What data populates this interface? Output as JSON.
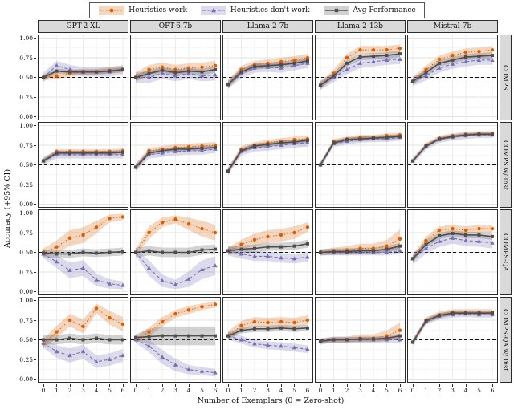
{
  "legend": {
    "items": [
      {
        "label": "Heuristics work"
      },
      {
        "label": "Heuristics don't work"
      },
      {
        "label": "Avg Performance"
      }
    ]
  },
  "axes": {
    "x_label": "Number of Exemplars (0 = Zero-shot)",
    "y_label": "Accuracy (+95% CI)",
    "y_ticks": [
      "0.00",
      "0.25",
      "0.50",
      "0.75",
      "1.00"
    ],
    "x_ticks": [
      "0",
      "1",
      "2",
      "3",
      "4",
      "5",
      "6"
    ]
  },
  "chart_data": {
    "type": "line",
    "x": [
      0,
      1,
      2,
      3,
      4,
      5,
      6
    ],
    "xlabel": "Number of Exemplars (0 = Zero-shot)",
    "ylabel": "Accuracy (+95% CI)",
    "ylim": [
      0,
      1
    ],
    "yticks": [
      0,
      0.25,
      0.5,
      0.75,
      1
    ],
    "reference_line": 0.5,
    "grid": true,
    "legend_position": "top",
    "columns": [
      "GPT-2 XL",
      "OPT-6.7b",
      "Llama-2-7b",
      "Llama-2-13b",
      "Mistral-7b"
    ],
    "rows": [
      "COMPS",
      "COMPS w/ Inst",
      "COMPS-QA",
      "COMPS-QA w/ Inst"
    ],
    "series_meta": [
      {
        "id": "work",
        "name": "Heuristics work",
        "color": "#D95F02",
        "dash": "dotted",
        "marker": "circle"
      },
      {
        "id": "dont",
        "name": "Heuristics don't work",
        "color": "#7570B3",
        "dash": "dashed",
        "marker": "triangle"
      },
      {
        "id": "avg",
        "name": "Avg Performance",
        "color": "#4D4D4D",
        "dash": "solid",
        "marker": "square"
      }
    ],
    "panels": [
      [
        {
          "work": {
            "v": [
              0.5,
              0.52,
              0.55,
              0.57,
              0.57,
              0.59,
              0.6
            ],
            "ci": 0.04
          },
          "dont": {
            "v": [
              0.5,
              0.65,
              0.6,
              0.57,
              0.57,
              0.57,
              0.6
            ],
            "ci": 0.06
          },
          "avg": {
            "v": [
              0.5,
              0.58,
              0.57,
              0.57,
              0.57,
              0.58,
              0.6
            ],
            "ci": 0.03
          }
        },
        {
          "work": {
            "v": [
              0.5,
              0.6,
              0.63,
              0.6,
              0.62,
              0.63,
              0.65
            ],
            "ci": 0.06
          },
          "dont": {
            "v": [
              0.5,
              0.5,
              0.55,
              0.52,
              0.55,
              0.52,
              0.53
            ],
            "ci": 0.07
          },
          "avg": {
            "v": [
              0.5,
              0.55,
              0.59,
              0.56,
              0.58,
              0.57,
              0.6
            ],
            "ci": 0.04
          }
        },
        {
          "work": {
            "v": [
              0.41,
              0.6,
              0.66,
              0.68,
              0.7,
              0.72,
              0.75
            ],
            "ci": 0.05
          },
          "dont": {
            "v": [
              0.41,
              0.55,
              0.62,
              0.63,
              0.62,
              0.65,
              0.68
            ],
            "ci": 0.06
          },
          "avg": {
            "v": [
              0.41,
              0.57,
              0.64,
              0.65,
              0.66,
              0.68,
              0.71
            ],
            "ci": 0.04
          }
        },
        {
          "work": {
            "v": [
              0.4,
              0.55,
              0.75,
              0.85,
              0.85,
              0.85,
              0.87
            ],
            "ci": 0.05
          },
          "dont": {
            "v": [
              0.4,
              0.5,
              0.6,
              0.68,
              0.7,
              0.72,
              0.73
            ],
            "ci": 0.06
          },
          "avg": {
            "v": [
              0.4,
              0.52,
              0.68,
              0.76,
              0.77,
              0.78,
              0.8
            ],
            "ci": 0.04
          }
        },
        {
          "work": {
            "v": [
              0.45,
              0.6,
              0.73,
              0.78,
              0.82,
              0.83,
              0.85
            ],
            "ci": 0.05
          },
          "dont": {
            "v": [
              0.45,
              0.52,
              0.62,
              0.67,
              0.7,
              0.72,
              0.72
            ],
            "ci": 0.06
          },
          "avg": {
            "v": [
              0.45,
              0.56,
              0.68,
              0.72,
              0.76,
              0.77,
              0.78
            ],
            "ci": 0.04
          }
        }
      ],
      [
        {
          "work": {
            "v": [
              0.55,
              0.67,
              0.67,
              0.67,
              0.67,
              0.67,
              0.68
            ],
            "ci": 0.03
          },
          "dont": {
            "v": [
              0.55,
              0.63,
              0.63,
              0.63,
              0.63,
              0.63,
              0.63
            ],
            "ci": 0.05
          },
          "avg": {
            "v": [
              0.55,
              0.65,
              0.65,
              0.65,
              0.65,
              0.65,
              0.66
            ],
            "ci": 0.03
          }
        },
        {
          "work": {
            "v": [
              0.47,
              0.68,
              0.7,
              0.72,
              0.73,
              0.74,
              0.75
            ],
            "ci": 0.04
          },
          "dont": {
            "v": [
              0.47,
              0.63,
              0.65,
              0.67,
              0.68,
              0.68,
              0.7
            ],
            "ci": 0.05
          },
          "avg": {
            "v": [
              0.47,
              0.65,
              0.68,
              0.7,
              0.7,
              0.71,
              0.72
            ],
            "ci": 0.03
          }
        },
        {
          "work": {
            "v": [
              0.42,
              0.7,
              0.75,
              0.78,
              0.8,
              0.82,
              0.83
            ],
            "ci": 0.04
          },
          "dont": {
            "v": [
              0.42,
              0.67,
              0.72,
              0.73,
              0.75,
              0.77,
              0.78
            ],
            "ci": 0.05
          },
          "avg": {
            "v": [
              0.42,
              0.68,
              0.74,
              0.76,
              0.78,
              0.79,
              0.81
            ],
            "ci": 0.03
          }
        },
        {
          "work": {
            "v": [
              0.5,
              0.8,
              0.83,
              0.85,
              0.85,
              0.87,
              0.88
            ],
            "ci": 0.03
          },
          "dont": {
            "v": [
              0.5,
              0.77,
              0.8,
              0.82,
              0.83,
              0.83,
              0.85
            ],
            "ci": 0.04
          },
          "avg": {
            "v": [
              0.5,
              0.78,
              0.82,
              0.83,
              0.84,
              0.85,
              0.86
            ],
            "ci": 0.03
          }
        },
        {
          "work": {
            "v": [
              0.55,
              0.75,
              0.84,
              0.87,
              0.89,
              0.9,
              0.9
            ],
            "ci": 0.03
          },
          "dont": {
            "v": [
              0.55,
              0.73,
              0.82,
              0.85,
              0.87,
              0.88,
              0.88
            ],
            "ci": 0.04
          },
          "avg": {
            "v": [
              0.55,
              0.74,
              0.83,
              0.86,
              0.88,
              0.89,
              0.89
            ],
            "ci": 0.02
          }
        }
      ],
      [
        {
          "work": {
            "v": [
              0.5,
              0.57,
              0.68,
              0.72,
              0.82,
              0.93,
              0.95
            ],
            "ci": [
              0.05,
              0.08,
              0.1,
              0.1,
              0.08,
              0.05,
              0.04
            ]
          },
          "dont": {
            "v": [
              0.48,
              0.38,
              0.27,
              0.3,
              0.15,
              0.1,
              0.08
            ],
            "ci": [
              0.05,
              0.08,
              0.1,
              0.1,
              0.08,
              0.06,
              0.05
            ]
          },
          "avg": {
            "v": [
              0.49,
              0.48,
              0.48,
              0.5,
              0.49,
              0.5,
              0.51
            ],
            "ci": 0.05
          }
        },
        {
          "work": {
            "v": [
              0.5,
              0.75,
              0.88,
              0.92,
              0.86,
              0.8,
              0.75
            ],
            "ci": [
              0.04,
              0.08,
              0.06,
              0.05,
              0.08,
              0.1,
              0.1
            ]
          },
          "dont": {
            "v": [
              0.5,
              0.3,
              0.14,
              0.09,
              0.16,
              0.28,
              0.33
            ],
            "ci": [
              0.04,
              0.1,
              0.08,
              0.06,
              0.1,
              0.12,
              0.12
            ]
          },
          "avg": {
            "v": [
              0.5,
              0.52,
              0.5,
              0.5,
              0.5,
              0.53,
              0.54
            ],
            "ci": 0.06
          }
        },
        {
          "work": {
            "v": [
              0.52,
              0.6,
              0.66,
              0.7,
              0.72,
              0.75,
              0.82
            ],
            "ci": [
              0.04,
              0.06,
              0.08,
              0.08,
              0.08,
              0.08,
              0.06
            ]
          },
          "dont": {
            "v": [
              0.52,
              0.48,
              0.45,
              0.45,
              0.43,
              0.42,
              0.44
            ],
            "ci": 0.06
          },
          "avg": {
            "v": [
              0.52,
              0.54,
              0.55,
              0.57,
              0.57,
              0.58,
              0.61
            ],
            "ci": 0.05
          }
        },
        {
          "work": {
            "v": [
              0.5,
              0.52,
              0.53,
              0.55,
              0.55,
              0.58,
              0.67
            ],
            "ci": [
              0.03,
              0.04,
              0.05,
              0.06,
              0.06,
              0.08,
              0.12
            ]
          },
          "dont": {
            "v": [
              0.5,
              0.5,
              0.5,
              0.5,
              0.5,
              0.5,
              0.52
            ],
            "ci": 0.04
          },
          "avg": {
            "v": [
              0.5,
              0.51,
              0.51,
              0.52,
              0.52,
              0.54,
              0.58
            ],
            "ci": 0.04
          }
        },
        {
          "work": {
            "v": [
              0.42,
              0.65,
              0.78,
              0.8,
              0.78,
              0.8,
              0.8
            ],
            "ci": 0.05
          },
          "dont": {
            "v": [
              0.42,
              0.55,
              0.64,
              0.68,
              0.65,
              0.64,
              0.62
            ],
            "ci": 0.07
          },
          "avg": {
            "v": [
              0.42,
              0.6,
              0.71,
              0.74,
              0.72,
              0.72,
              0.7
            ],
            "ci": 0.04
          }
        }
      ],
      [
        {
          "work": {
            "v": [
              0.45,
              0.6,
              0.75,
              0.67,
              0.9,
              0.78,
              0.7
            ],
            "ci": [
              0.06,
              0.08,
              0.08,
              0.09,
              0.06,
              0.09,
              0.09
            ]
          },
          "dont": {
            "v": [
              0.46,
              0.35,
              0.3,
              0.35,
              0.22,
              0.25,
              0.3
            ],
            "ci": [
              0.06,
              0.08,
              0.09,
              0.09,
              0.08,
              0.08,
              0.08
            ]
          },
          "avg": {
            "v": [
              0.5,
              0.5,
              0.52,
              0.5,
              0.52,
              0.5,
              0.5
            ],
            "ci": 0.06
          }
        },
        {
          "work": {
            "v": [
              0.5,
              0.6,
              0.73,
              0.83,
              0.88,
              0.92,
              0.95
            ],
            "ci": [
              0.04,
              0.06,
              0.06,
              0.05,
              0.05,
              0.04,
              0.04
            ]
          },
          "dont": {
            "v": [
              0.5,
              0.42,
              0.28,
              0.18,
              0.12,
              0.1,
              0.08
            ],
            "ci": [
              0.04,
              0.08,
              0.09,
              0.08,
              0.06,
              0.05,
              0.05
            ]
          },
          "avg": {
            "v": [
              0.53,
              0.54,
              0.55,
              0.55,
              0.55,
              0.55,
              0.55
            ],
            "ci": [
              0.04,
              0.1,
              0.12,
              0.12,
              0.12,
              0.12,
              0.12
            ]
          }
        },
        {
          "work": {
            "v": [
              0.55,
              0.68,
              0.73,
              0.72,
              0.73,
              0.72,
              0.75
            ],
            "ci": 0.06
          },
          "dont": {
            "v": [
              0.55,
              0.5,
              0.45,
              0.43,
              0.42,
              0.4,
              0.38
            ],
            "ci": 0.05
          },
          "avg": {
            "v": [
              0.55,
              0.62,
              0.64,
              0.64,
              0.65,
              0.64,
              0.65
            ],
            "ci": 0.04
          }
        },
        {
          "work": {
            "v": [
              0.48,
              0.5,
              0.5,
              0.52,
              0.52,
              0.55,
              0.62
            ],
            "ci": [
              0.03,
              0.04,
              0.04,
              0.05,
              0.05,
              0.07,
              0.1
            ]
          },
          "dont": {
            "v": [
              0.48,
              0.5,
              0.5,
              0.5,
              0.5,
              0.5,
              0.5
            ],
            "ci": 0.04
          },
          "avg": {
            "v": [
              0.48,
              0.5,
              0.5,
              0.51,
              0.51,
              0.52,
              0.55
            ],
            "ci": 0.03
          }
        },
        {
          "work": {
            "v": [
              0.47,
              0.75,
              0.82,
              0.85,
              0.85,
              0.85,
              0.85
            ],
            "ci": 0.04
          },
          "dont": {
            "v": [
              0.47,
              0.73,
              0.8,
              0.82,
              0.83,
              0.82,
              0.82
            ],
            "ci": 0.04
          },
          "avg": {
            "v": [
              0.47,
              0.74,
              0.81,
              0.84,
              0.84,
              0.84,
              0.84
            ],
            "ci": 0.03
          }
        }
      ]
    ]
  }
}
